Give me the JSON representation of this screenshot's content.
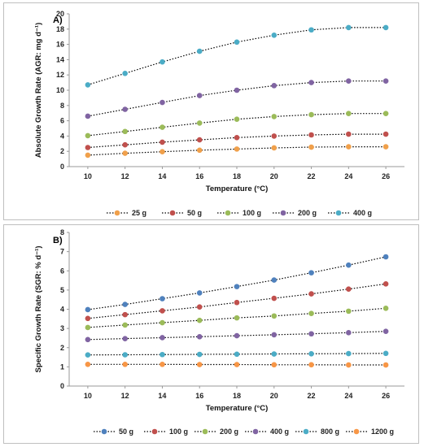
{
  "chart_data": [
    {
      "type": "line",
      "panel_label": "A)",
      "xlabel": "Temperature (°C)",
      "ylabel": "Absolute Growth Rate (AGR: mg d⁻¹)",
      "x": [
        10,
        12,
        14,
        16,
        18,
        20,
        22,
        24,
        26
      ],
      "xlim": [
        9,
        27
      ],
      "ylim": [
        0,
        20
      ],
      "yticks": [
        0,
        2,
        4,
        6,
        8,
        10,
        12,
        14,
        16,
        18,
        20
      ],
      "grid": false,
      "legend_position": "bottom",
      "series": [
        {
          "name": "25 g",
          "color": "#f0a04b",
          "values": [
            1.5,
            1.75,
            1.95,
            2.15,
            2.3,
            2.45,
            2.55,
            2.6,
            2.6
          ]
        },
        {
          "name": "50 g",
          "color": "#c0504d",
          "values": [
            2.5,
            2.85,
            3.2,
            3.5,
            3.8,
            4.0,
            4.15,
            4.25,
            4.25
          ]
        },
        {
          "name": "100 g",
          "color": "#9bbb59",
          "values": [
            4.05,
            4.6,
            5.15,
            5.7,
            6.2,
            6.55,
            6.8,
            6.95,
            6.95
          ]
        },
        {
          "name": "200 g",
          "color": "#8064a2",
          "values": [
            6.6,
            7.5,
            8.4,
            9.3,
            10.0,
            10.6,
            11.0,
            11.2,
            11.2
          ]
        },
        {
          "name": "400 g",
          "color": "#4bacc6",
          "values": [
            10.7,
            12.2,
            13.7,
            15.1,
            16.3,
            17.2,
            17.9,
            18.2,
            18.2
          ]
        }
      ]
    },
    {
      "type": "line",
      "panel_label": "B)",
      "xlabel": "Temperature (°C)",
      "ylabel": "Specific Growth Rate (SGR: % d⁻¹)",
      "x": [
        10,
        12,
        14,
        16,
        18,
        20,
        22,
        24,
        26
      ],
      "xlim": [
        9,
        27
      ],
      "ylim": [
        0,
        8
      ],
      "yticks": [
        0,
        1,
        2,
        3,
        4,
        5,
        6,
        7,
        8
      ],
      "grid": false,
      "legend_position": "bottom",
      "series": [
        {
          "name": "50 g",
          "color": "#4f81bd",
          "values": [
            3.98,
            4.25,
            4.55,
            4.85,
            5.18,
            5.52,
            5.9,
            6.3,
            6.73
          ]
        },
        {
          "name": "100 g",
          "color": "#c0504d",
          "values": [
            3.52,
            3.72,
            3.92,
            4.12,
            4.35,
            4.57,
            4.8,
            5.05,
            5.32
          ]
        },
        {
          "name": "200 g",
          "color": "#9bbb59",
          "values": [
            3.05,
            3.18,
            3.3,
            3.42,
            3.55,
            3.65,
            3.78,
            3.9,
            4.05
          ]
        },
        {
          "name": "400 g",
          "color": "#8064a2",
          "values": [
            2.42,
            2.47,
            2.52,
            2.57,
            2.62,
            2.67,
            2.72,
            2.78,
            2.85
          ]
        },
        {
          "name": "800 g",
          "color": "#4bacc6",
          "values": [
            1.62,
            1.63,
            1.64,
            1.65,
            1.66,
            1.67,
            1.68,
            1.69,
            1.7
          ]
        },
        {
          "name": "1200 g",
          "color": "#f79646",
          "values": [
            1.13,
            1.13,
            1.13,
            1.12,
            1.12,
            1.11,
            1.11,
            1.1,
            1.1
          ]
        }
      ]
    }
  ]
}
